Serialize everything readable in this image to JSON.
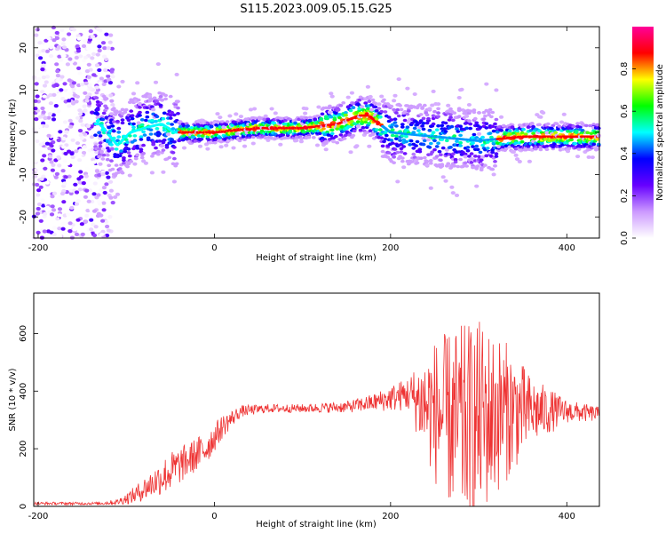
{
  "title": "S115.2023.009.05.15.G25",
  "chart_data": [
    {
      "type": "heatmap",
      "xlabel": "Height of straight line (km)",
      "ylabel": "Frequency (Hz)",
      "xlim": [
        -205,
        437
      ],
      "ylim": [
        -25,
        25
      ],
      "xticks": [
        "-200",
        "0",
        "200",
        "400"
      ],
      "yticks": [
        "20",
        "10",
        "0",
        "-10",
        "-20"
      ],
      "ytick_values": [
        20,
        10,
        0,
        -10,
        -20
      ],
      "xtick_values": [
        -200,
        0,
        200,
        400
      ],
      "colorbar": {
        "label": "Normalized spectral amplitude",
        "ticks": [
          "0.8",
          "0.6",
          "0.4",
          "0.2",
          "0.0"
        ],
        "tick_values": [
          0.8,
          0.6,
          0.4,
          0.2,
          0.0
        ],
        "range": [
          0,
          1
        ],
        "colors": [
          "#ffffff",
          "#cc99ff",
          "#6600ff",
          "#0000ff",
          "#00ffff",
          "#00ff00",
          "#ffff00",
          "#ff0000",
          "#ff0099"
        ]
      },
      "ridge": {
        "x": [
          -130,
          -110,
          -95,
          -80,
          -60,
          -45,
          -20,
          0,
          50,
          100,
          140,
          165,
          175,
          200,
          250,
          300,
          350,
          400,
          437
        ],
        "y": [
          2,
          -3,
          0,
          1,
          2,
          0,
          0,
          0,
          1,
          1,
          2,
          4,
          4,
          0,
          -1,
          -2,
          -1,
          -1,
          -1
        ]
      },
      "noise_region": {
        "x_start": -205,
        "x_end": -120
      }
    },
    {
      "type": "line",
      "xlabel": "Height of straight line (km)",
      "ylabel": "SNR (10 * v/v)",
      "xlim": [
        -205,
        437
      ],
      "ylim": [
        0,
        740
      ],
      "xticks": [
        "-200",
        "0",
        "200",
        "400"
      ],
      "xtick_values": [
        -200,
        0,
        200,
        400
      ],
      "yticks": [
        "600",
        "400",
        "200",
        "0"
      ],
      "ytick_values": [
        600,
        400,
        200,
        0
      ],
      "series": [
        {
          "color": "#ee3333",
          "envelope": {
            "x": [
              -205,
              -130,
              -110,
              -90,
              -70,
              -50,
              -30,
              -10,
              10,
              30,
              60,
              100,
              150,
              180,
              220,
              250,
              280,
              300,
              330,
              360,
              400,
              437
            ],
            "mean": [
              10,
              10,
              15,
              40,
              80,
              120,
              160,
              200,
              280,
              330,
              340,
              340,
              345,
              360,
              390,
              330,
              280,
              300,
              330,
              330,
              330,
              320
            ],
            "spread": [
              5,
              5,
              10,
              30,
              50,
              70,
              60,
              60,
              40,
              20,
              15,
              15,
              20,
              30,
              60,
              250,
              350,
              350,
              250,
              120,
              40,
              25
            ]
          }
        }
      ]
    }
  ]
}
